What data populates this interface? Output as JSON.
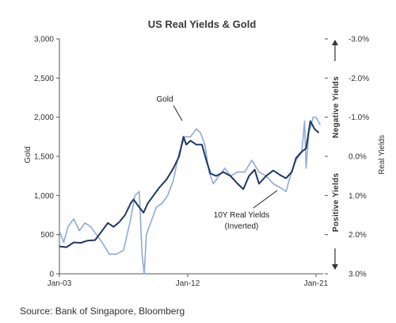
{
  "chart_data": {
    "type": "line",
    "title": "US Real Yields & Gold",
    "ylabel_left": "Gold",
    "ylabel_right": "Real Yields",
    "y_left": {
      "min": 0,
      "max": 3000,
      "ticks": [
        "3,000",
        "2,500",
        "2,000",
        "1,500",
        "1,000",
        "500",
        "0"
      ]
    },
    "y_right": {
      "min": -3.0,
      "max": 3.0,
      "inverted": true,
      "ticks": [
        "-3.0%",
        "-2.0%",
        "-1.0%",
        "0.0%",
        "1.0%",
        "2.0%",
        "3.0%"
      ]
    },
    "x_ticks": [
      "Jan-03",
      "Jan-12",
      "Jan-21"
    ],
    "x_range": [
      2003.0,
      2021.5
    ],
    "side_labels": {
      "top": "Negative  Yields",
      "bottom": "Positive  Yields"
    },
    "annotations": {
      "gold": "Gold",
      "yield_line1": "10Y Real Yields",
      "yield_line2": "(Inverted)"
    },
    "source": "Source: Bank of Singapore, Bloomberg",
    "series": [
      {
        "name": "Gold",
        "axis": "left",
        "color": "#1f3864",
        "x": [
          2003.0,
          2003.5,
          2004.0,
          2004.5,
          2005.0,
          2005.5,
          2006.0,
          2006.4,
          2006.8,
          2007.2,
          2007.6,
          2008.0,
          2008.2,
          2008.6,
          2008.9,
          2009.2,
          2009.6,
          2010.0,
          2010.5,
          2011.0,
          2011.4,
          2011.7,
          2011.9,
          2012.2,
          2012.6,
          2013.0,
          2013.3,
          2013.6,
          2014.0,
          2014.5,
          2015.0,
          2015.5,
          2015.9,
          2016.3,
          2016.7,
          2017.0,
          2017.5,
          2018.0,
          2018.5,
          2018.9,
          2019.3,
          2019.6,
          2020.0,
          2020.3,
          2020.6,
          2020.9,
          2021.2
        ],
        "values": [
          350,
          340,
          400,
          395,
          425,
          430,
          550,
          650,
          600,
          660,
          750,
          900,
          950,
          850,
          780,
          900,
          1000,
          1100,
          1200,
          1350,
          1500,
          1750,
          1650,
          1700,
          1650,
          1650,
          1450,
          1280,
          1250,
          1300,
          1250,
          1150,
          1080,
          1250,
          1330,
          1150,
          1250,
          1320,
          1260,
          1220,
          1300,
          1480,
          1560,
          1600,
          1950,
          1850,
          1800
        ]
      },
      {
        "name": "10Y Real Yields (Inverted)",
        "axis": "right",
        "color": "#8ea9db",
        "x": [
          2003.0,
          2003.3,
          2003.6,
          2004.0,
          2004.4,
          2004.8,
          2005.2,
          2005.6,
          2006.0,
          2006.5,
          2007.0,
          2007.5,
          2008.0,
          2008.3,
          2008.6,
          2008.8,
          2008.95,
          2009.1,
          2009.4,
          2009.8,
          2010.2,
          2010.6,
          2011.0,
          2011.4,
          2011.8,
          2012.2,
          2012.6,
          2012.9,
          2013.2,
          2013.5,
          2013.8,
          2014.2,
          2014.6,
          2015.0,
          2015.5,
          2016.0,
          2016.5,
          2017.0,
          2017.5,
          2018.0,
          2018.5,
          2018.9,
          2019.2,
          2019.6,
          2020.0,
          2020.2,
          2020.3,
          2020.5,
          2020.8,
          2021.0,
          2021.3
        ],
        "values": [
          1.9,
          2.2,
          1.8,
          1.6,
          1.9,
          1.7,
          1.8,
          2.0,
          2.2,
          2.5,
          2.5,
          2.4,
          1.6,
          1.0,
          0.9,
          2.5,
          3.0,
          2.0,
          1.7,
          1.3,
          1.2,
          1.0,
          0.6,
          -0.1,
          -0.5,
          -0.5,
          -0.7,
          -0.6,
          -0.3,
          0.4,
          0.7,
          0.5,
          0.3,
          0.5,
          0.4,
          0.4,
          0.1,
          0.4,
          0.5,
          0.7,
          0.8,
          0.9,
          0.5,
          0.1,
          -0.1,
          -0.9,
          0.3,
          -0.6,
          -1.0,
          -1.0,
          -0.8
        ]
      }
    ]
  }
}
